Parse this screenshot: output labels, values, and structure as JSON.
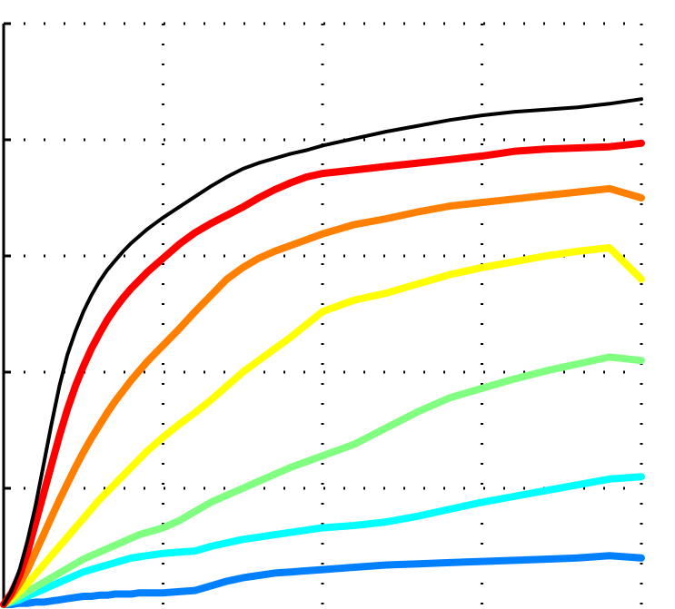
{
  "chart_data": {
    "type": "line",
    "title": "",
    "xlabel": "",
    "ylabel": "",
    "grid": true,
    "xlim": [
      0,
      4
    ],
    "ylim": [
      0,
      5
    ],
    "x_gridlines": [
      1,
      2,
      3,
      4
    ],
    "y_gridlines": [
      1,
      2,
      3,
      4,
      5
    ],
    "x_ticklabels": [],
    "y_ticklabels": [],
    "series": [
      {
        "color": "#000000",
        "x": [
          0,
          0.05,
          0.1,
          0.15,
          0.2,
          0.25,
          0.3,
          0.35,
          0.4,
          0.45,
          0.5,
          0.55,
          0.6,
          0.65,
          0.7,
          0.75,
          0.8,
          0.85,
          0.9,
          0.95,
          1.0,
          1.1,
          1.2,
          1.3,
          1.4,
          1.5,
          1.6,
          1.7,
          1.8,
          1.9,
          2.0,
          2.2,
          2.4,
          2.6,
          2.8,
          3.0,
          3.2,
          3.4,
          3.6,
          3.8,
          4.0
        ],
        "y": [
          0.0,
          0.12,
          0.3,
          0.55,
          0.85,
          1.2,
          1.55,
          1.88,
          2.15,
          2.35,
          2.52,
          2.66,
          2.78,
          2.88,
          2.96,
          3.04,
          3.11,
          3.17,
          3.23,
          3.28,
          3.33,
          3.42,
          3.51,
          3.6,
          3.68,
          3.75,
          3.8,
          3.84,
          3.88,
          3.91,
          3.95,
          4.01,
          4.07,
          4.12,
          4.17,
          4.21,
          4.24,
          4.26,
          4.28,
          4.31,
          4.35
        ]
      },
      {
        "color": "#ff0000",
        "x": [
          0,
          0.05,
          0.1,
          0.15,
          0.2,
          0.25,
          0.3,
          0.35,
          0.4,
          0.45,
          0.5,
          0.55,
          0.6,
          0.65,
          0.7,
          0.75,
          0.8,
          0.85,
          0.9,
          0.95,
          1.0,
          1.1,
          1.2,
          1.3,
          1.4,
          1.5,
          1.6,
          1.7,
          1.8,
          1.9,
          2.0,
          2.2,
          2.4,
          2.6,
          2.8,
          3.0,
          3.2,
          3.4,
          3.6,
          3.8,
          4.0
        ],
        "y": [
          0.0,
          0.1,
          0.25,
          0.45,
          0.7,
          0.95,
          1.2,
          1.45,
          1.68,
          1.88,
          2.05,
          2.2,
          2.33,
          2.45,
          2.55,
          2.64,
          2.72,
          2.79,
          2.86,
          2.92,
          2.98,
          3.1,
          3.2,
          3.28,
          3.35,
          3.42,
          3.5,
          3.57,
          3.63,
          3.68,
          3.71,
          3.74,
          3.77,
          3.8,
          3.83,
          3.86,
          3.9,
          3.92,
          3.93,
          3.94,
          3.97
        ]
      },
      {
        "color": "#ff8000",
        "x": [
          0,
          0.05,
          0.1,
          0.15,
          0.2,
          0.25,
          0.3,
          0.35,
          0.4,
          0.45,
          0.5,
          0.55,
          0.6,
          0.65,
          0.7,
          0.75,
          0.8,
          0.85,
          0.9,
          0.95,
          1.0,
          1.1,
          1.2,
          1.3,
          1.4,
          1.5,
          1.6,
          1.7,
          1.8,
          1.9,
          2.0,
          2.2,
          2.4,
          2.6,
          2.8,
          3.0,
          3.2,
          3.4,
          3.6,
          3.8,
          4.0
        ],
        "y": [
          0.0,
          0.08,
          0.18,
          0.3,
          0.45,
          0.6,
          0.75,
          0.9,
          1.04,
          1.18,
          1.31,
          1.43,
          1.54,
          1.65,
          1.75,
          1.84,
          1.93,
          2.01,
          2.09,
          2.16,
          2.23,
          2.37,
          2.52,
          2.66,
          2.8,
          2.9,
          2.98,
          3.04,
          3.09,
          3.14,
          3.19,
          3.27,
          3.32,
          3.38,
          3.43,
          3.46,
          3.49,
          3.52,
          3.55,
          3.58,
          3.5
        ]
      },
      {
        "color": "#ffff00",
        "x": [
          0,
          0.05,
          0.1,
          0.15,
          0.2,
          0.25,
          0.3,
          0.35,
          0.4,
          0.45,
          0.5,
          0.55,
          0.6,
          0.65,
          0.7,
          0.75,
          0.8,
          0.85,
          0.9,
          0.95,
          1.0,
          1.1,
          1.2,
          1.3,
          1.4,
          1.5,
          1.6,
          1.7,
          1.8,
          1.9,
          2.0,
          2.2,
          2.4,
          2.6,
          2.8,
          3.0,
          3.2,
          3.4,
          3.6,
          3.8,
          4.0
        ],
        "y": [
          0.0,
          0.05,
          0.11,
          0.18,
          0.26,
          0.34,
          0.42,
          0.5,
          0.58,
          0.66,
          0.74,
          0.82,
          0.9,
          0.97,
          1.04,
          1.11,
          1.18,
          1.25,
          1.32,
          1.38,
          1.44,
          1.55,
          1.65,
          1.76,
          1.88,
          2.0,
          2.1,
          2.2,
          2.3,
          2.41,
          2.52,
          2.62,
          2.68,
          2.76,
          2.84,
          2.9,
          2.95,
          3.0,
          3.04,
          3.07,
          2.8
        ]
      },
      {
        "color": "#80ff80",
        "x": [
          0,
          0.05,
          0.1,
          0.15,
          0.2,
          0.25,
          0.3,
          0.35,
          0.4,
          0.45,
          0.5,
          0.55,
          0.6,
          0.65,
          0.7,
          0.75,
          0.8,
          0.85,
          0.9,
          0.95,
          1.0,
          1.1,
          1.2,
          1.3,
          1.4,
          1.5,
          1.6,
          1.7,
          1.8,
          1.9,
          2.0,
          2.2,
          2.4,
          2.6,
          2.8,
          3.0,
          3.2,
          3.4,
          3.6,
          3.8,
          4.0
        ],
        "y": [
          0.0,
          0.03,
          0.07,
          0.11,
          0.15,
          0.19,
          0.23,
          0.27,
          0.31,
          0.35,
          0.39,
          0.42,
          0.45,
          0.48,
          0.51,
          0.54,
          0.57,
          0.6,
          0.62,
          0.64,
          0.66,
          0.72,
          0.8,
          0.88,
          0.94,
          1.0,
          1.06,
          1.12,
          1.18,
          1.23,
          1.28,
          1.38,
          1.52,
          1.66,
          1.78,
          1.86,
          1.94,
          2.01,
          2.07,
          2.13,
          2.1
        ]
      },
      {
        "color": "#00ffff",
        "x": [
          0,
          0.05,
          0.1,
          0.15,
          0.2,
          0.25,
          0.3,
          0.35,
          0.4,
          0.45,
          0.5,
          0.55,
          0.6,
          0.65,
          0.7,
          0.75,
          0.8,
          0.85,
          0.9,
          0.95,
          1.0,
          1.1,
          1.2,
          1.3,
          1.4,
          1.5,
          1.6,
          1.7,
          1.8,
          1.9,
          2.0,
          2.2,
          2.4,
          2.6,
          2.8,
          3.0,
          3.2,
          3.4,
          3.6,
          3.8,
          4.0
        ],
        "y": [
          0.0,
          0.02,
          0.04,
          0.07,
          0.1,
          0.13,
          0.16,
          0.19,
          0.22,
          0.25,
          0.28,
          0.3,
          0.32,
          0.34,
          0.36,
          0.38,
          0.4,
          0.41,
          0.42,
          0.43,
          0.44,
          0.45,
          0.46,
          0.5,
          0.53,
          0.56,
          0.58,
          0.6,
          0.62,
          0.64,
          0.66,
          0.68,
          0.71,
          0.76,
          0.82,
          0.88,
          0.93,
          0.98,
          1.03,
          1.08,
          1.1
        ]
      },
      {
        "color": "#0080ff",
        "x": [
          0,
          0.05,
          0.1,
          0.15,
          0.2,
          0.25,
          0.3,
          0.35,
          0.4,
          0.45,
          0.5,
          0.55,
          0.6,
          0.65,
          0.7,
          0.75,
          0.8,
          0.85,
          0.9,
          0.95,
          1.0,
          1.1,
          1.2,
          1.3,
          1.4,
          1.5,
          1.6,
          1.7,
          1.8,
          1.9,
          2.0,
          2.2,
          2.4,
          2.6,
          2.8,
          3.0,
          3.2,
          3.4,
          3.6,
          3.8,
          4.0
        ],
        "y": [
          0.0,
          0.0,
          0.01,
          0.01,
          0.02,
          0.02,
          0.03,
          0.04,
          0.05,
          0.06,
          0.07,
          0.07,
          0.08,
          0.08,
          0.09,
          0.09,
          0.09,
          0.1,
          0.1,
          0.1,
          0.1,
          0.11,
          0.12,
          0.16,
          0.2,
          0.23,
          0.25,
          0.27,
          0.28,
          0.29,
          0.3,
          0.32,
          0.34,
          0.35,
          0.36,
          0.37,
          0.38,
          0.39,
          0.4,
          0.42,
          0.4
        ]
      }
    ]
  }
}
